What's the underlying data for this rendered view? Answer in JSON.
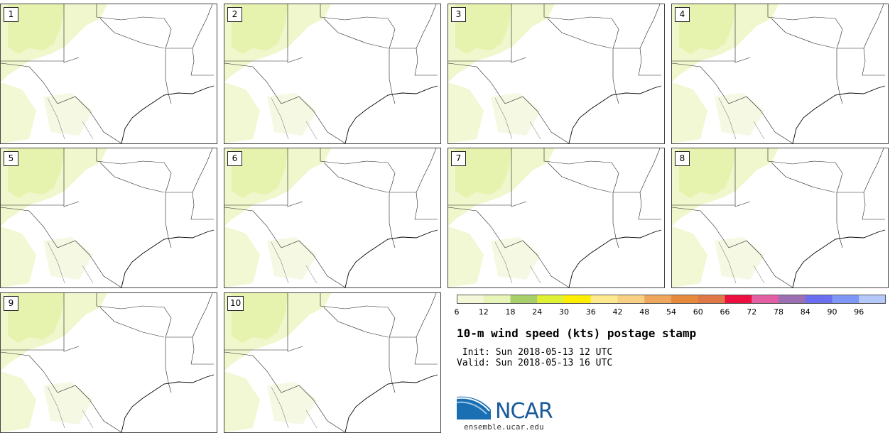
{
  "panels": [
    {
      "label": "1"
    },
    {
      "label": "2"
    },
    {
      "label": "3"
    },
    {
      "label": "4"
    },
    {
      "label": "5"
    },
    {
      "label": "6"
    },
    {
      "label": "7"
    },
    {
      "label": "8"
    },
    {
      "label": "9"
    },
    {
      "label": "10"
    }
  ],
  "colorbar": {
    "ticks": [
      "6",
      "12",
      "18",
      "24",
      "30",
      "36",
      "42",
      "48",
      "54",
      "60",
      "66",
      "72",
      "78",
      "84",
      "90",
      "96"
    ],
    "colors": [
      "#f4f7d8",
      "#e8f5b8",
      "#a9cf6b",
      "#dff135",
      "#ffee00",
      "#fde98e",
      "#f8d083",
      "#eda65c",
      "#e68a3c",
      "#df7846",
      "#ec0f40",
      "#e35ea2",
      "#9b6fb2",
      "#6b6eef",
      "#7e97f6",
      "#b4c8fb"
    ]
  },
  "title": "10-m wind speed (kts) postage stamp",
  "init_text": " Init: Sun 2018-05-13 12 UTC",
  "valid_text": "Valid: Sun 2018-05-13 16 UTC",
  "logo": {
    "text": "NCAR",
    "url": "ensemble.ucar.edu"
  }
}
